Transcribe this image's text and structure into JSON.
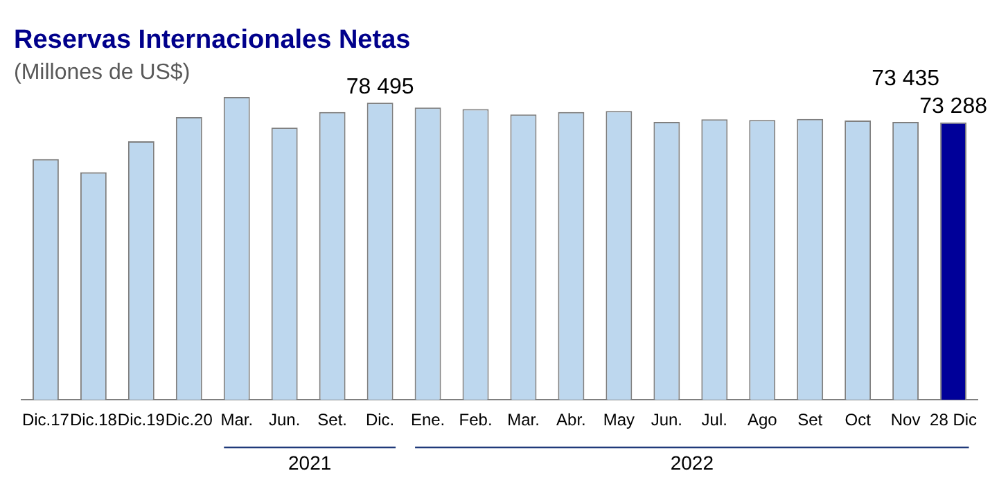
{
  "chart_data": {
    "type": "bar",
    "title": "Reservas Internacionales Netas",
    "subtitle": "(Millones de US$)",
    "categories": [
      "Dic.17",
      "Dic.18",
      "Dic.19",
      "Dic.20",
      "Mar.",
      "Jun.",
      "Set.",
      "Dic.",
      "Ene.",
      "Feb.",
      "Mar.",
      "Abr.",
      "May",
      "Jun.",
      "Jul.",
      "Ago",
      "Set",
      "Oct",
      "Nov",
      "28 Dic"
    ],
    "values": [
      63600,
      60100,
      68300,
      74700,
      80000,
      71900,
      76000,
      78495,
      77200,
      76800,
      75400,
      76000,
      76300,
      73400,
      74100,
      73900,
      74200,
      73800,
      73435,
      73288
    ],
    "colors": [
      "#bdd7ee",
      "#bdd7ee",
      "#bdd7ee",
      "#bdd7ee",
      "#bdd7ee",
      "#bdd7ee",
      "#bdd7ee",
      "#bdd7ee",
      "#bdd7ee",
      "#bdd7ee",
      "#bdd7ee",
      "#bdd7ee",
      "#bdd7ee",
      "#bdd7ee",
      "#bdd7ee",
      "#bdd7ee",
      "#bdd7ee",
      "#bdd7ee",
      "#bdd7ee",
      "#000099"
    ],
    "value_labels": [
      null,
      null,
      null,
      null,
      null,
      null,
      null,
      "78 495",
      null,
      null,
      null,
      null,
      null,
      null,
      null,
      null,
      null,
      null,
      "73 435",
      "73 288"
    ],
    "annotations": [
      "2021",
      "2022"
    ],
    "grid": false,
    "legend": false
  }
}
